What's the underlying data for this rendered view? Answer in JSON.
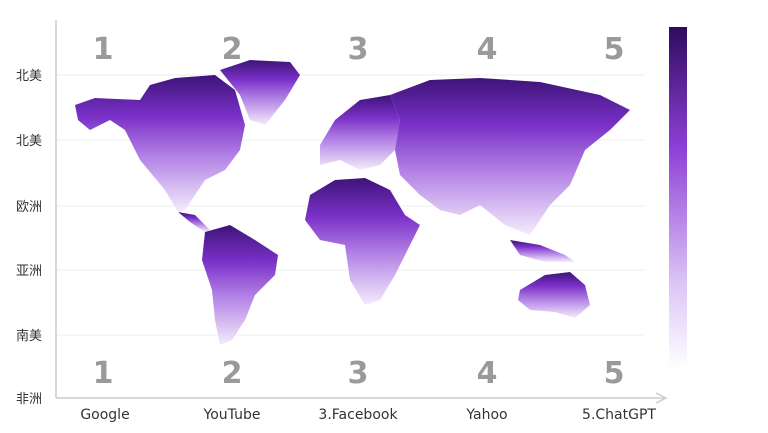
{
  "chart_data": {
    "type": "heatmap",
    "title": "",
    "y_tick_labels": [
      "北美",
      "北美",
      "欧洲",
      "亚洲",
      "南美",
      "非洲"
    ],
    "x_tick_labels": [
      "Google",
      "YouTube",
      "3.Facebook",
      "Yahoo",
      "5.ChatGPT"
    ],
    "top_ranks": [
      "1",
      "2",
      "3",
      "4",
      "5"
    ],
    "bottom_ranks": [
      "1",
      "2",
      "3",
      "4",
      "5"
    ],
    "background": "world-map",
    "grid": true,
    "colorbar": {
      "placement": "right",
      "color_high": "#2e0b5e",
      "color_mid": "#8e3fd6",
      "color_low": "#ffffff"
    }
  }
}
